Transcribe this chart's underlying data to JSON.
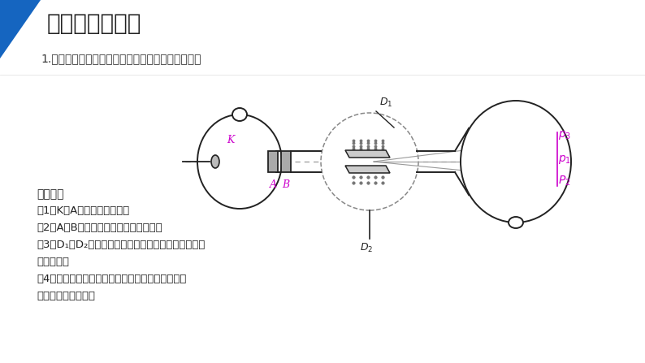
{
  "title": "一、电子的发现",
  "subtitle": "1.认识实验装置的作用，分析阴极射线的运动情况。",
  "bg_color": "#ffffff",
  "title_color": "#222222",
  "subtitle_color": "#333333",
  "purple_color": "#cc00cc",
  "blue_color": "#1565c0",
  "diagram_color": "#222222",
  "gray_color": "#888888",
  "text_block": [
    "实验装置",
    "（1）K、A部分产生阴极射线",
    "（2）A、B只让水平运动的阴极射线通过",
    "（3）D₁、D₂之间加电场或磁场检测阴极射线是否带电",
    "和带电性质",
    "（4）药光屏显示阴极射线到达的位置，对阴极射线",
    "的偏转做定量的测定"
  ]
}
